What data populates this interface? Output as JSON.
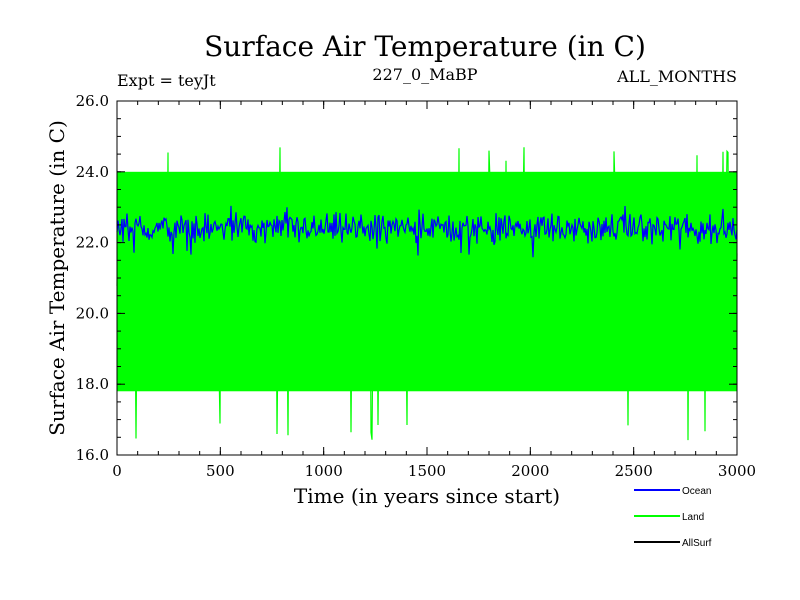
{
  "chart_data": {
    "type": "line",
    "title": "Surface Air Temperature (in C)",
    "subtitle_left": "Expt = teyJt",
    "subtitle_center": "227_0_MaBP",
    "subtitle_right": "ALL_MONTHS",
    "xlabel": "Time (in years since start)",
    "ylabel": "Surface Air Temperature (in C)",
    "xlim": [
      0,
      3000
    ],
    "ylim": [
      16.0,
      26.0
    ],
    "x_ticks": [
      "0",
      "500",
      "1000",
      "1500",
      "2000",
      "2500",
      "3000"
    ],
    "y_ticks": [
      "16.0",
      "18.0",
      "20.0",
      "22.0",
      "24.0",
      "26.0"
    ],
    "grid": false,
    "legend_position": "bottom-right",
    "series": [
      {
        "name": "Land",
        "color": "#00ff00",
        "mean": 20.7,
        "min": 16.4,
        "max": 24.7,
        "typical_range": [
          17.8,
          24.0
        ]
      },
      {
        "name": "Ocean",
        "color": "#0000ff",
        "mean": 22.4,
        "min": 21.5,
        "max": 23.1,
        "typical_range": [
          21.9,
          22.9
        ]
      },
      {
        "name": "AllSurf",
        "color": "#000000"
      }
    ],
    "legend": [
      {
        "label": "Ocean",
        "color": "#0000ff"
      },
      {
        "label": "Land",
        "color": "#00ff00"
      },
      {
        "label": "AllSurf",
        "color": "#000000"
      }
    ]
  }
}
